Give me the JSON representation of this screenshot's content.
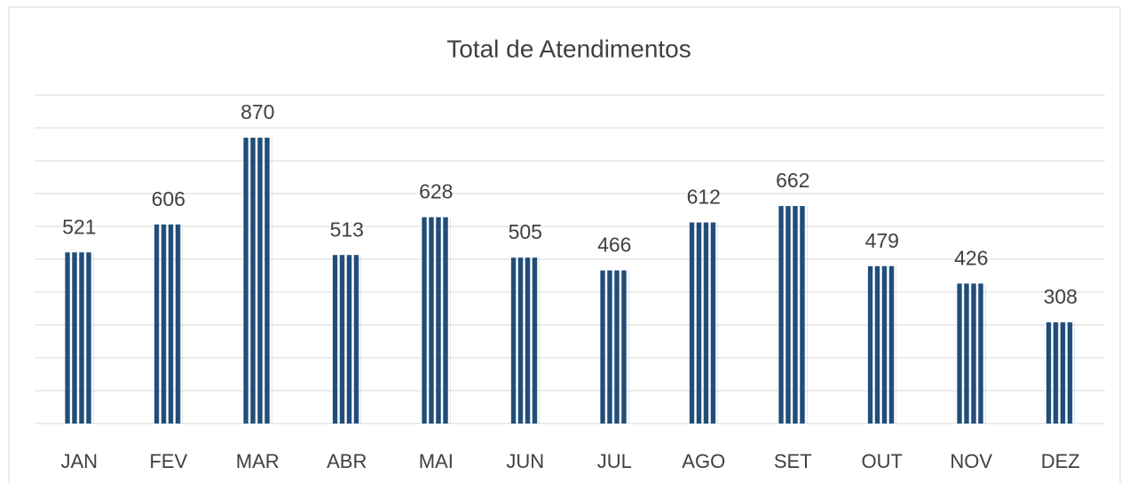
{
  "chart_data": {
    "type": "bar",
    "title": "Total de Atendimentos",
    "categories": [
      "JAN",
      "FEV",
      "MAR",
      "ABR",
      "MAI",
      "JUN",
      "JUL",
      "AGO",
      "SET",
      "OUT",
      "NOV",
      "DEZ"
    ],
    "values": [
      521,
      606,
      870,
      513,
      628,
      505,
      466,
      612,
      662,
      479,
      426,
      308
    ],
    "color": "#1f4e79",
    "ylim": [
      0,
      1000
    ],
    "yticks": [
      0,
      100,
      200,
      300,
      400,
      500,
      600,
      700,
      800,
      900,
      1000
    ],
    "grid": true
  }
}
